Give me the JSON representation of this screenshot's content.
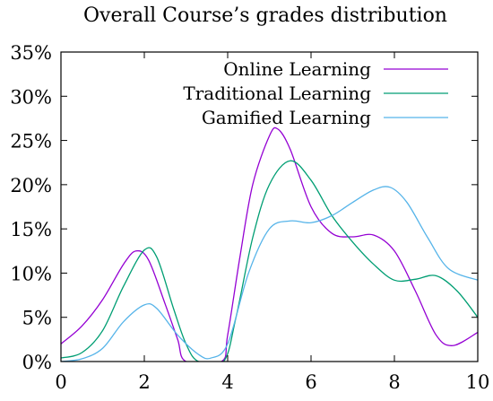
{
  "chart_data": {
    "type": "line",
    "title": "Overall Course’s grades distribution",
    "xlabel": "",
    "ylabel": "",
    "xlim": [
      0,
      10
    ],
    "ylim": [
      0,
      35
    ],
    "x_ticks": [
      0,
      2,
      4,
      6,
      8,
      10
    ],
    "x_tick_labels": [
      "0",
      "2",
      "4",
      "6",
      "8",
      "10"
    ],
    "y_ticks": [
      0,
      5,
      10,
      15,
      20,
      25,
      30,
      35
    ],
    "y_tick_labels": [
      "0%",
      "5%",
      "10%",
      "15%",
      "20%",
      "25%",
      "30%",
      "35%"
    ],
    "grid": false,
    "legend_position": "top-right",
    "series": [
      {
        "name": "Online Learning",
        "color": "#9400d3",
        "points": [
          [
            0,
            2.0
          ],
          [
            0.5,
            4.0
          ],
          [
            1.0,
            7.0
          ],
          [
            1.5,
            11.0
          ],
          [
            1.8,
            12.5
          ],
          [
            2.1,
            11.5
          ],
          [
            2.5,
            6.5
          ],
          [
            2.8,
            2.5
          ],
          [
            3.0,
            0.0
          ],
          [
            3.85,
            0.0
          ],
          [
            4.0,
            3.0
          ],
          [
            4.3,
            12.0
          ],
          [
            4.6,
            20.0
          ],
          [
            5.0,
            25.5
          ],
          [
            5.2,
            26.3
          ],
          [
            5.5,
            24.0
          ],
          [
            6.0,
            17.5
          ],
          [
            6.5,
            14.5
          ],
          [
            7.0,
            14.1
          ],
          [
            7.5,
            14.3
          ],
          [
            8.0,
            12.5
          ],
          [
            8.5,
            8.0
          ],
          [
            9.0,
            3.0
          ],
          [
            9.4,
            1.8
          ],
          [
            10.0,
            3.3
          ]
        ]
      },
      {
        "name": "Traditional Learning",
        "color": "#009e73",
        "points": [
          [
            0,
            0.4
          ],
          [
            0.5,
            1.0
          ],
          [
            1.0,
            3.5
          ],
          [
            1.5,
            8.5
          ],
          [
            2.0,
            12.6
          ],
          [
            2.3,
            11.8
          ],
          [
            2.7,
            6.0
          ],
          [
            3.0,
            2.0
          ],
          [
            3.3,
            0.0
          ],
          [
            3.9,
            0.0
          ],
          [
            4.2,
            5.0
          ],
          [
            4.6,
            14.0
          ],
          [
            5.0,
            20.0
          ],
          [
            5.5,
            22.7
          ],
          [
            6.0,
            20.5
          ],
          [
            6.5,
            16.5
          ],
          [
            7.0,
            13.5
          ],
          [
            7.5,
            11.0
          ],
          [
            8.0,
            9.2
          ],
          [
            8.5,
            9.3
          ],
          [
            9.0,
            9.7
          ],
          [
            9.5,
            8.0
          ],
          [
            10.0,
            5.0
          ]
        ]
      },
      {
        "name": "Gamified Learning",
        "color": "#56b4e9",
        "points": [
          [
            0,
            0.0
          ],
          [
            0.5,
            0.3
          ],
          [
            1.0,
            1.5
          ],
          [
            1.5,
            4.5
          ],
          [
            2.0,
            6.4
          ],
          [
            2.3,
            6.0
          ],
          [
            2.8,
            3.0
          ],
          [
            3.3,
            0.8
          ],
          [
            3.6,
            0.4
          ],
          [
            4.0,
            2.0
          ],
          [
            4.5,
            10.0
          ],
          [
            5.0,
            15.0
          ],
          [
            5.5,
            15.9
          ],
          [
            6.0,
            15.7
          ],
          [
            6.5,
            16.5
          ],
          [
            7.0,
            18.0
          ],
          [
            7.5,
            19.4
          ],
          [
            7.9,
            19.7
          ],
          [
            8.3,
            18.0
          ],
          [
            8.8,
            14.0
          ],
          [
            9.3,
            10.5
          ],
          [
            10.0,
            9.2
          ]
        ]
      }
    ]
  }
}
